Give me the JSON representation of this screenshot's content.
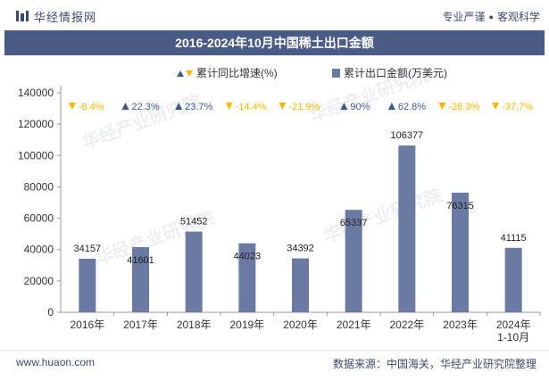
{
  "header": {
    "brand": "华经情报网",
    "right_left": "专业严谨",
    "right_right": "客观科学"
  },
  "footer": {
    "left": "www.huaon.com",
    "right": "数据来源：中国海关，华经产业研究院整理"
  },
  "watermark": "华经产业研究院",
  "colors": {
    "bar": "#6b7aa3",
    "up": "#3f5a8a",
    "down": "#f5b800",
    "title_bg": "#4a5b86"
  },
  "chart_data": {
    "type": "bar",
    "title": "2016-2024年10月中国稀土出口金额",
    "categories": [
      "2016年",
      "2017年",
      "2018年",
      "2019年",
      "2020年",
      "2021年",
      "2022年",
      "2023年",
      "2024年\n1-10月"
    ],
    "ylim": [
      0,
      140000
    ],
    "yticks": [
      0,
      20000,
      40000,
      60000,
      80000,
      100000,
      120000,
      140000
    ],
    "grid": false,
    "legend_position": "top-center",
    "series": [
      {
        "name": "累计出口金额(万美元)",
        "values": [
          34157,
          41601,
          51452,
          44023,
          34392,
          65337,
          106377,
          76315,
          41115
        ],
        "labels": [
          "34157",
          "41601",
          "51452",
          "44023",
          "34392",
          "65337",
          "106377",
          "76315",
          "41115"
        ]
      },
      {
        "name": "累计同比增速(%)",
        "values": [
          -8.4,
          22.3,
          23.7,
          -14.4,
          -21.9,
          90,
          62.8,
          -28.3,
          -37.7
        ],
        "labels": [
          "-8.4%",
          "22.3%",
          "23.7%",
          "-14.4%",
          "-21.9%",
          "90%",
          "62.8%",
          "-28.3%",
          "-37.7%"
        ]
      }
    ]
  }
}
